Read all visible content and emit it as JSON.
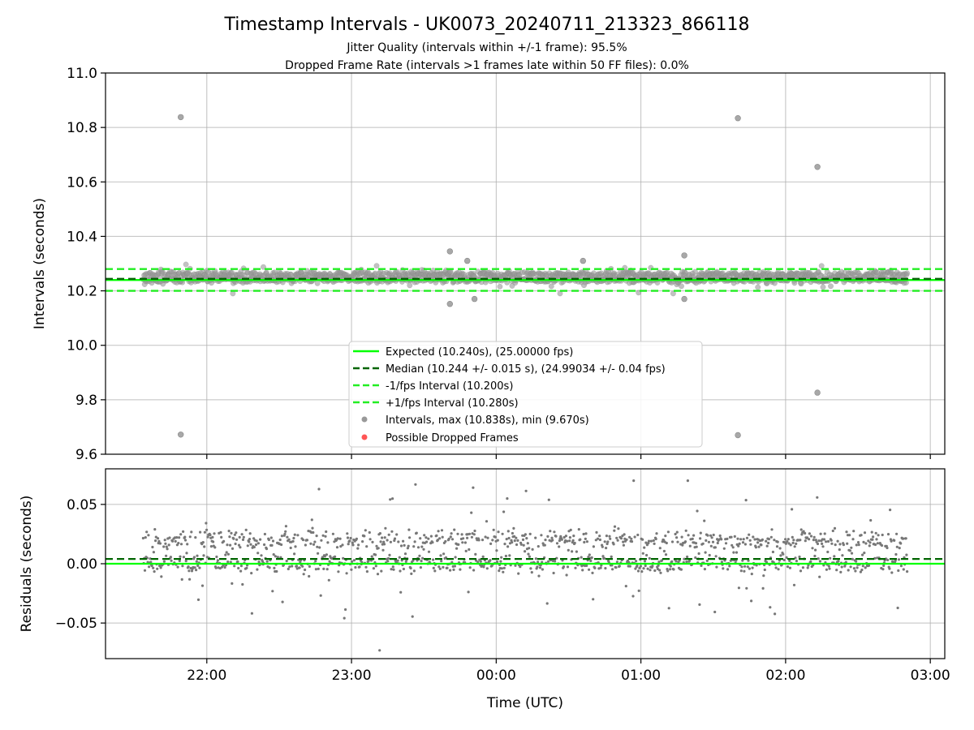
{
  "chart_data": {
    "title": "Timestamp Intervals - UK0073_20240711_213323_866118",
    "subtitle_lines": [
      "Jitter Quality (intervals within +/-1 frame): 95.5%",
      "Dropped Frame Rate (intervals >1 frames late within 50 FF files): 0.0%"
    ],
    "xlabel": "Time (UTC)",
    "x_ticks": [
      "22:00",
      "23:00",
      "00:00",
      "01:00",
      "02:00",
      "03:00"
    ],
    "x_tick_hours": [
      22,
      23,
      24,
      25,
      26,
      27
    ],
    "x_range_hours": [
      21.3,
      27.1
    ],
    "data_x_range_hours": [
      21.56,
      26.84
    ],
    "panels": [
      {
        "type": "scatter",
        "name": "intervals",
        "ylabel": "Intervals (seconds)",
        "ylim": [
          9.6,
          11.0
        ],
        "y_ticks": [
          "11.0",
          "10.8",
          "10.6",
          "10.4",
          "10.2",
          "10.0",
          "9.8",
          "9.6"
        ],
        "y_tick_values": [
          11.0,
          10.8,
          10.6,
          10.4,
          10.2,
          10.0,
          9.8,
          9.6
        ],
        "grid": true,
        "legend_position": "lower center",
        "reference_lines": [
          {
            "label": "Expected (10.240s), (25.00000 fps)",
            "value": 10.24,
            "color": "#00ff00",
            "style": "solid"
          },
          {
            "label": "Median (10.244 +/- 0.015 s), (24.99034 +/- 0.04 fps)",
            "value": 10.244,
            "color": "#006400",
            "style": "dashed"
          },
          {
            "label": "-1/fps Interval (10.200s)",
            "value": 10.2,
            "color": "#22ee22",
            "style": "dashed"
          },
          {
            "label": "+1/fps Interval (10.280s)",
            "value": 10.28,
            "color": "#22ee22",
            "style": "dashed"
          }
        ],
        "scatter_series": [
          {
            "label": "Intervals, max (10.838s), min (9.670s)",
            "color": "#999999",
            "max": 10.838,
            "min": 9.67
          },
          {
            "label": "Possible Dropped Frames",
            "color": "#ff5555",
            "points": []
          }
        ],
        "outliers": [
          {
            "x": 21.82,
            "y": 10.838
          },
          {
            "x": 21.82,
            "y": 9.672
          },
          {
            "x": 25.67,
            "y": 10.834
          },
          {
            "x": 25.67,
            "y": 9.67
          },
          {
            "x": 26.22,
            "y": 10.655
          },
          {
            "x": 26.22,
            "y": 9.826
          },
          {
            "x": 23.68,
            "y": 10.345
          },
          {
            "x": 23.68,
            "y": 10.152
          },
          {
            "x": 25.3,
            "y": 10.33
          },
          {
            "x": 25.3,
            "y": 10.17
          },
          {
            "x": 24.6,
            "y": 10.31
          },
          {
            "x": 23.8,
            "y": 10.31
          },
          {
            "x": 23.85,
            "y": 10.17
          }
        ]
      },
      {
        "type": "scatter",
        "name": "residuals",
        "ylabel": "Residuals (seconds)",
        "ylim": [
          -0.08,
          0.08
        ],
        "y_ticks": [
          "0.05",
          "0.00",
          "−0.05"
        ],
        "y_tick_values": [
          0.05,
          0.0,
          -0.05
        ],
        "grid": true,
        "reference_lines": [
          {
            "value": 0.0,
            "color": "#00ff00",
            "style": "solid"
          },
          {
            "value": 0.004,
            "color": "#006400",
            "style": "dashed"
          }
        ],
        "marker_color": "#777777",
        "approx_range": [
          -0.073,
          0.07
        ]
      }
    ]
  }
}
